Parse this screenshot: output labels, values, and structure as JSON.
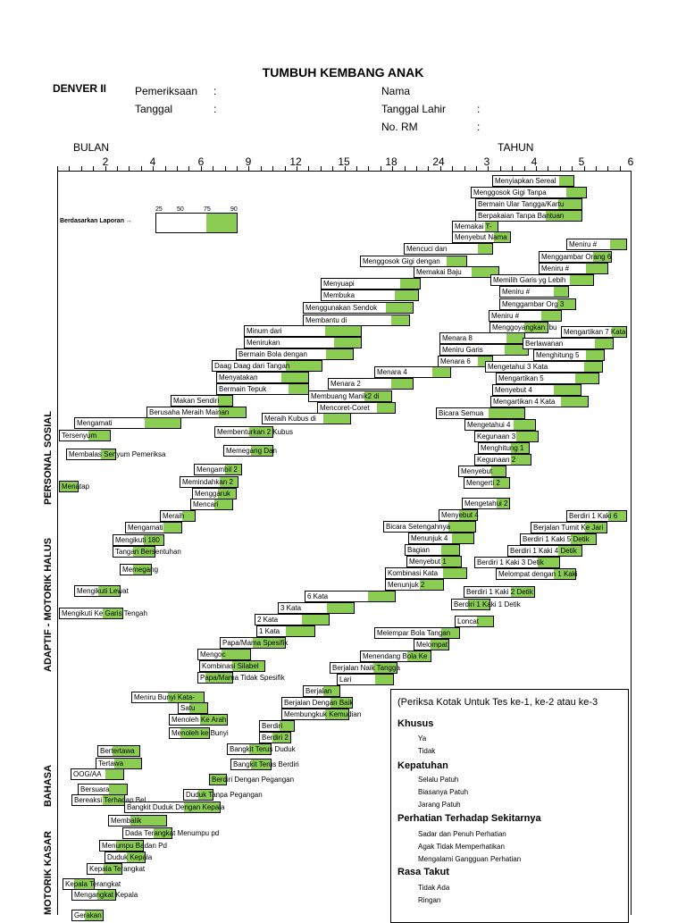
{
  "title": "TUMBUH KEMBANG ANAK",
  "header": {
    "denver": "DENVER II",
    "pemeriksaan": "Pemeriksaan",
    "tanggal": "Tanggal",
    "colon": ":",
    "nama": "Nama",
    "tanggal_lahir": "Tanggal Lahir",
    "no_rm": "No. RM"
  },
  "axis": {
    "bulan": "BULAN",
    "tahun": "TAHUN",
    "ticks": [
      "2",
      "4",
      "6",
      "9",
      "12",
      "15",
      "18",
      "24",
      "3",
      "4",
      "5",
      "6"
    ]
  },
  "key": {
    "label": "Berdasarkan Laporan →",
    "percentiles": [
      "25",
      "50",
      "75",
      "90"
    ]
  },
  "sections": {
    "personal_sosial": "PERSONAL SOSIAL",
    "adaptif": "ADAPTIF - MOTORIK HALUS",
    "bahasa": "BAHASA",
    "motorik_kasar": "MOTORIK KASAR"
  },
  "items": [
    "Menyiapkan Sereal",
    "Menggosok Gigi Tanpa",
    "Bermain Ular Tangga/Kartu",
    "Berpakaian Tanpa Bantuan",
    "Memakai T-",
    "Menyebut Nama",
    "Mencuci dan",
    "Menggosok Gigi dengan",
    "Memakai Baju",
    "Menyuapi",
    "Membuka",
    "Menggunakan Sendok",
    "Membantu di",
    "Minum dari",
    "Menirukan",
    "Bermain Bola dengan",
    "Daag Daag dari Tangan",
    "Menyatakan",
    "Bermain Tepuk",
    "Makan Sendiri",
    "Berusaha Meraih Mainan",
    "Mengamati",
    "Tersenyum",
    "Membalas Senyum Pemeriksa",
    "Menatap",
    "Meniru #",
    "Menggambar Orang 6",
    "Meniru #",
    "Memilih Garis yg Lebih",
    "Meniru #",
    "Menggambar Org 3",
    "Meniru #",
    "Menggoyangkan Ibu",
    "Menara 8",
    "Meniru Garis",
    "Menara 6",
    "Menara 4",
    "Menara 2",
    "Membuang Manik2 di",
    "Mencoret-Coret",
    "Meraih Kubus di",
    "Membenturkan 2 Kubus",
    "Memegang Dan",
    "Mengambil 2",
    "Memindahkan 2",
    "Menggaruk",
    "Mencari",
    "Meraih",
    "Mengamati",
    "Mengikuti 180",
    "Tangan Bersentuhan",
    "Memegang",
    "Mengikuti Lewat",
    "Mengikuti Ke Garis Tengah",
    "Mengartikan 7 Kata",
    "Berlawanan",
    "Menghitung 5",
    "Mengetahui 3 Kata",
    "Mengartikan 5",
    "Menyebut 4",
    "Mengartikan 4 Kata",
    "Bicara Semua",
    "Mengetahui 4",
    "Kegunaan 3",
    "Menghitung 1",
    "Kegunaan 2",
    "Menyebut",
    "Mengerti 2",
    "Mengetahui 2",
    "Menyebut 4",
    "Bicara Setengahnya",
    "Menunjuk 4",
    "Bagian",
    "Menyebut 1",
    "Kombinasi Kata",
    "Menunjuk 2",
    "6 Kata",
    "3 Kata",
    "2 Kata",
    "1 Kata",
    "Papa/Mama Spesifik",
    "Mengoc",
    "Kombinasi Silabel",
    "Papa/Mama Tidak Spesifik",
    "Meniru Bunyi Kata-",
    "Satu",
    "Menoleh Ke Arah",
    "Menoleh ke Bunyi",
    "Bertertawa",
    "Tertawa",
    "OOG/AA",
    "Bersuara",
    "Bereaksi Terhadap Bel",
    "Berdiri 1 Kaki 6",
    "Berjalan Tumit Ke Jari",
    "Berdiri 1 Kaki 5 Detik",
    "Berdiri 1 Kaki 4 Detik",
    "Berdiri 1 Kaki 3 Detik",
    "Melompat dengan 1 Kaki",
    "Berdiri 1 Kaki 2 Detik",
    "Berdiri 1 Kaki 1 Detik",
    "Loncat",
    "Melempar Bola Tangan",
    "Melompat",
    "Menendang Bola Ke",
    "Berjalan Naik Tangga",
    "Lari",
    "Berjalan",
    "Berjalan Dengan Baik",
    "Membungkuk Kemudian",
    "Berdiri",
    "Berdiri 2",
    "Bangkit Terus Duduk",
    "Bangkit Terus Berdiri",
    "Berdiri Dengan Pegangan",
    "Duduk Tanpa Pegangan",
    "Bangkit Duduk Dengan Kepala",
    "Membalik",
    "Dada Terangkat Menumpu pd",
    "Menumpu Badan Pd",
    "Duduk Kepala",
    "Kepala Terangkat",
    "Kepala Terangkat",
    "Mengangkat Kepala",
    "Gerakan"
  ],
  "legend": {
    "intro": "(Periksa Kotak Untuk Tes ke-1, ke-2 atau ke-3",
    "groups": [
      {
        "title": "Khusus",
        "items": [
          "Ya",
          "Tidak"
        ]
      },
      {
        "title": "Kepatuhan",
        "items": [
          "Selalu Patuh",
          "Biasanya Patuh",
          "Jarang Patuh"
        ]
      },
      {
        "title": "Perhatian Terhadap Sekitarnya",
        "items": [
          "Sadar dan Penuh Perhatian",
          "Agak Tidak Memperhatikan",
          "Mengalami Gangguan Perhatian"
        ]
      },
      {
        "title": "Rasa Takut",
        "items": [
          "Tidak Ada",
          "Ringan"
        ]
      }
    ]
  },
  "colors": {
    "green": "#8bcc52"
  }
}
